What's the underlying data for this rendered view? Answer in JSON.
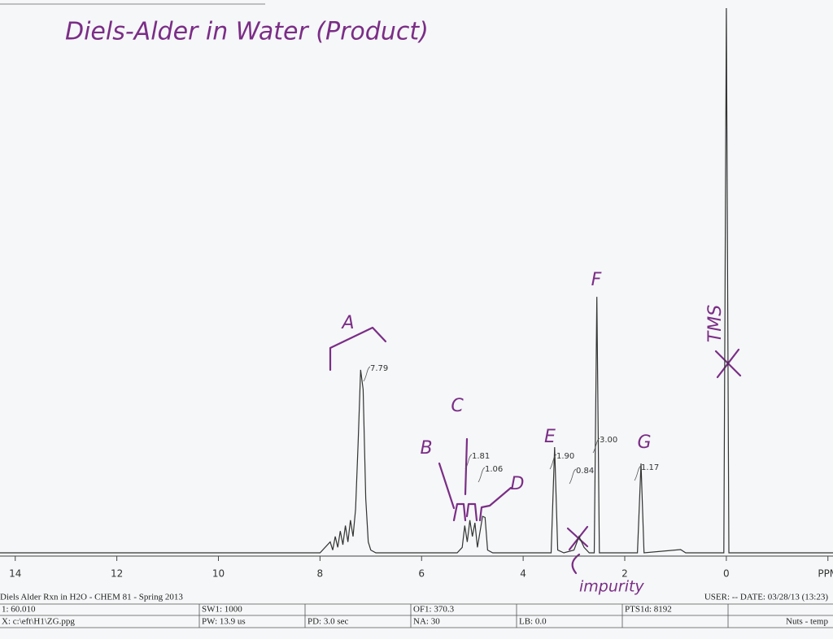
{
  "chart_data": {
    "type": "line",
    "title": "Diels-Alder in Water (Product)",
    "x": [
      14.3,
      8.0,
      7.8,
      7.75,
      7.7,
      7.65,
      7.6,
      7.55,
      7.5,
      7.45,
      7.4,
      7.35,
      7.3,
      7.25,
      7.2,
      7.15,
      7.1,
      7.05,
      7.0,
      6.9,
      5.3,
      5.2,
      5.15,
      5.1,
      5.05,
      5.0,
      4.95,
      4.9,
      4.8,
      4.75,
      4.7,
      4.6,
      3.45,
      3.38,
      3.32,
      3.2,
      3.0,
      2.9,
      2.8,
      2.7,
      2.6,
      2.55,
      2.5,
      1.75,
      1.68,
      1.62,
      0.9,
      0.8,
      0.05,
      0.0,
      -0.05,
      -2.1
    ],
    "values": [
      0,
      0,
      2,
      0.5,
      3,
      1,
      4,
      1.5,
      5,
      2,
      6,
      3,
      8,
      20,
      33.6,
      30,
      10,
      2,
      0.5,
      0,
      0,
      1,
      5,
      2,
      6,
      3,
      5.5,
      1,
      6.7,
      6.5,
      0.5,
      0,
      0,
      19.4,
      0.5,
      0,
      0.5,
      3,
      1,
      0,
      0,
      47,
      0,
      0,
      16.4,
      0,
      0.6,
      0,
      0,
      100,
      0,
      0
    ],
    "color": "#333333",
    "xlim": [
      14.3,
      -2.1
    ],
    "ylim": [
      0,
      100
    ],
    "xticks": [
      14,
      12,
      10,
      8,
      6,
      4,
      2,
      0,
      {
        "value": -2,
        "label": "PPM"
      }
    ],
    "integrals": [
      "7.79",
      "1.81",
      "1.06",
      "1.90",
      "0.84",
      "3.00",
      "1.17"
    ],
    "peak_labels": [
      "A",
      "B",
      "C",
      "D",
      "E",
      "F",
      "G",
      "TMS"
    ],
    "note": "impurity",
    "footer": {
      "title": "Diels Alder Rxn in H2O - CHEM 81 - Spring 2013",
      "user_date": "USER: -- DATE: 03/28/13 (13:23)",
      "rows": [
        [
          "1: 60.010",
          "SW1: 1000",
          "",
          "OF1: 370.3",
          "",
          "PTS1d: 8192",
          ""
        ],
        [
          "X: c:\\eft\\H1\\ZG.ppg",
          "PW: 13.9 us",
          "PD: 3.0  sec",
          "NA: 30",
          "LB: 0.0",
          "",
          "Nuts - temp"
        ]
      ]
    }
  }
}
